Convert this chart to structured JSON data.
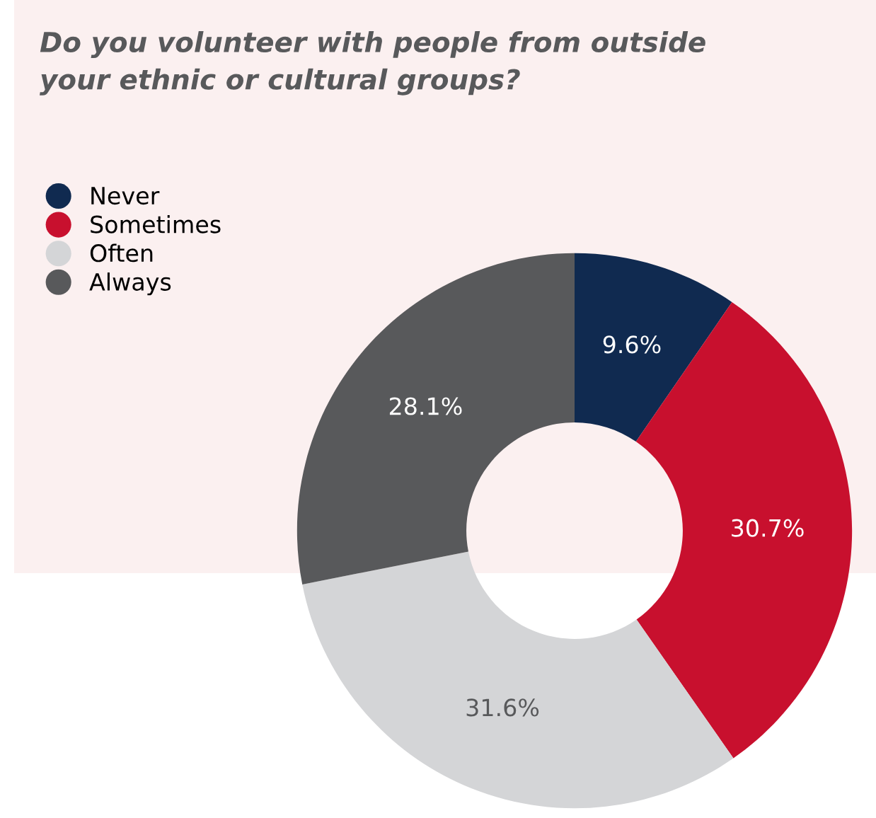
{
  "chart_data": {
    "type": "donut",
    "title": "Do you volunteer with people from outside\nyour ethnic or cultural groups?",
    "categories": [
      "Never",
      "Sometimes",
      "Often",
      "Always"
    ],
    "values": [
      9.6,
      30.7,
      31.6,
      28.1
    ],
    "colors": [
      "#102a50",
      "#c8102e",
      "#d4d5d7",
      "#58595b"
    ],
    "value_labels": [
      "9.6%",
      "30.7%",
      "31.6%",
      "28.1%"
    ],
    "legend": "top left"
  }
}
